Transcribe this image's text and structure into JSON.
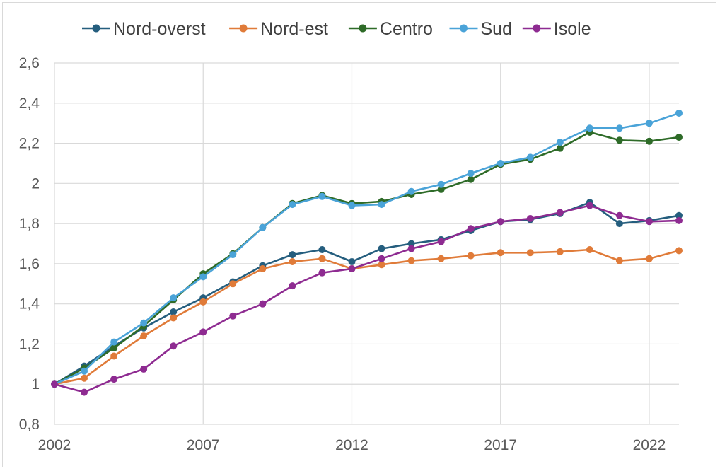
{
  "chart_data": {
    "type": "line",
    "title": "",
    "xlabel": "",
    "ylabel": "",
    "x": [
      2002,
      2003,
      2004,
      2005,
      2006,
      2007,
      2008,
      2009,
      2010,
      2011,
      2012,
      2013,
      2014,
      2015,
      2016,
      2017,
      2018,
      2019,
      2020,
      2021,
      2022,
      2023
    ],
    "xlim": [
      2002,
      2023
    ],
    "xticks": [
      "2002",
      "2007",
      "2012",
      "2017",
      "2022"
    ],
    "xtick_values": [
      2002,
      2007,
      2012,
      2017,
      2022
    ],
    "ylim": [
      0.8,
      2.6
    ],
    "yticks": [
      "0,8",
      "1",
      "1,2",
      "1,4",
      "1,6",
      "1,8",
      "2",
      "2,2",
      "2,4",
      "2,6"
    ],
    "ytick_values": [
      0.8,
      1.0,
      1.2,
      1.4,
      1.6,
      1.8,
      2.0,
      2.2,
      2.4,
      2.6
    ],
    "grid": true,
    "legend_position": "top",
    "series": [
      {
        "name": "Nord-overst",
        "color": "#255e7e",
        "values": [
          1.0,
          1.09,
          1.19,
          1.28,
          1.36,
          1.43,
          1.51,
          1.59,
          1.645,
          1.67,
          1.61,
          1.675,
          1.7,
          1.72,
          1.765,
          1.81,
          1.82,
          1.85,
          1.905,
          1.8,
          1.815,
          1.84
        ]
      },
      {
        "name": "Nord-est",
        "color": "#e07b39",
        "values": [
          1.0,
          1.03,
          1.14,
          1.24,
          1.33,
          1.41,
          1.5,
          1.575,
          1.61,
          1.625,
          1.575,
          1.595,
          1.615,
          1.625,
          1.64,
          1.655,
          1.655,
          1.66,
          1.67,
          1.615,
          1.625,
          1.665
        ]
      },
      {
        "name": "Centro",
        "color": "#2e6b28",
        "values": [
          1.0,
          1.08,
          1.18,
          1.29,
          1.42,
          1.55,
          1.65,
          1.78,
          1.9,
          1.94,
          1.9,
          1.91,
          1.945,
          1.97,
          2.02,
          2.095,
          2.12,
          2.175,
          2.255,
          2.215,
          2.21,
          2.23
        ]
      },
      {
        "name": "Sud",
        "color": "#4aa3d8",
        "values": [
          1.0,
          1.065,
          1.21,
          1.305,
          1.43,
          1.535,
          1.645,
          1.78,
          1.895,
          1.935,
          1.89,
          1.895,
          1.96,
          1.995,
          2.05,
          2.1,
          2.13,
          2.205,
          2.275,
          2.275,
          2.3,
          2.35
        ]
      },
      {
        "name": "Isole",
        "color": "#8e2b91",
        "values": [
          1.0,
          0.96,
          1.025,
          1.075,
          1.19,
          1.26,
          1.34,
          1.4,
          1.49,
          1.555,
          1.575,
          1.625,
          1.675,
          1.71,
          1.775,
          1.81,
          1.825,
          1.855,
          1.89,
          1.84,
          1.81,
          1.815
        ]
      }
    ]
  }
}
